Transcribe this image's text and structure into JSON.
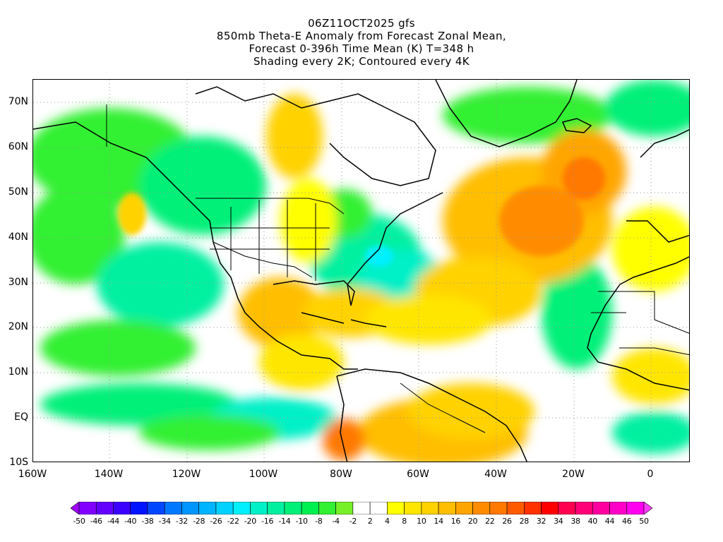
{
  "header": {
    "run": "06Z11OCT2025 gfs",
    "title": "850mb Theta-E Anomaly from Forecast Zonal Mean,",
    "subtitle": "Forecast 0-396h Time Mean (K) T=348 h",
    "note": "Shading every 2K; Contoured every 4K"
  },
  "axes": {
    "lat_labels": [
      "70N",
      "60N",
      "50N",
      "40N",
      "30N",
      "20N",
      "10N",
      "EQ",
      "10S"
    ],
    "lon_labels": [
      "160W",
      "140W",
      "120W",
      "100W",
      "80W",
      "60W",
      "40W",
      "20W",
      "0"
    ]
  },
  "colorbar": {
    "labels": [
      "-50",
      "-46",
      "-44",
      "-40",
      "-38",
      "-34",
      "-32",
      "-28",
      "-26",
      "-22",
      "-20",
      "-16",
      "-14",
      "-10",
      "-8",
      "-4",
      "-2",
      "2",
      "4",
      "8",
      "10",
      "14",
      "16",
      "20",
      "22",
      "26",
      "28",
      "32",
      "34",
      "38",
      "40",
      "44",
      "46",
      "50"
    ],
    "colors": [
      "#a000ff",
      "#8200ff",
      "#6400ff",
      "#3c00ff",
      "#0014ff",
      "#0046ff",
      "#0078ff",
      "#0096ff",
      "#00b4ff",
      "#00d2ff",
      "#00f0ff",
      "#00f0c8",
      "#00f0a0",
      "#00f078",
      "#00f050",
      "#32f032",
      "#78f028",
      "#ffffff",
      "#ffffff",
      "#ffff00",
      "#ffe600",
      "#ffd200",
      "#ffbe00",
      "#ffa500",
      "#ff8c00",
      "#ff7800",
      "#ff5a00",
      "#ff3200",
      "#ff0000",
      "#ff0050",
      "#ff0078",
      "#ff00a0",
      "#ff00c8",
      "#ff00f0",
      "#ff3cff"
    ]
  }
}
